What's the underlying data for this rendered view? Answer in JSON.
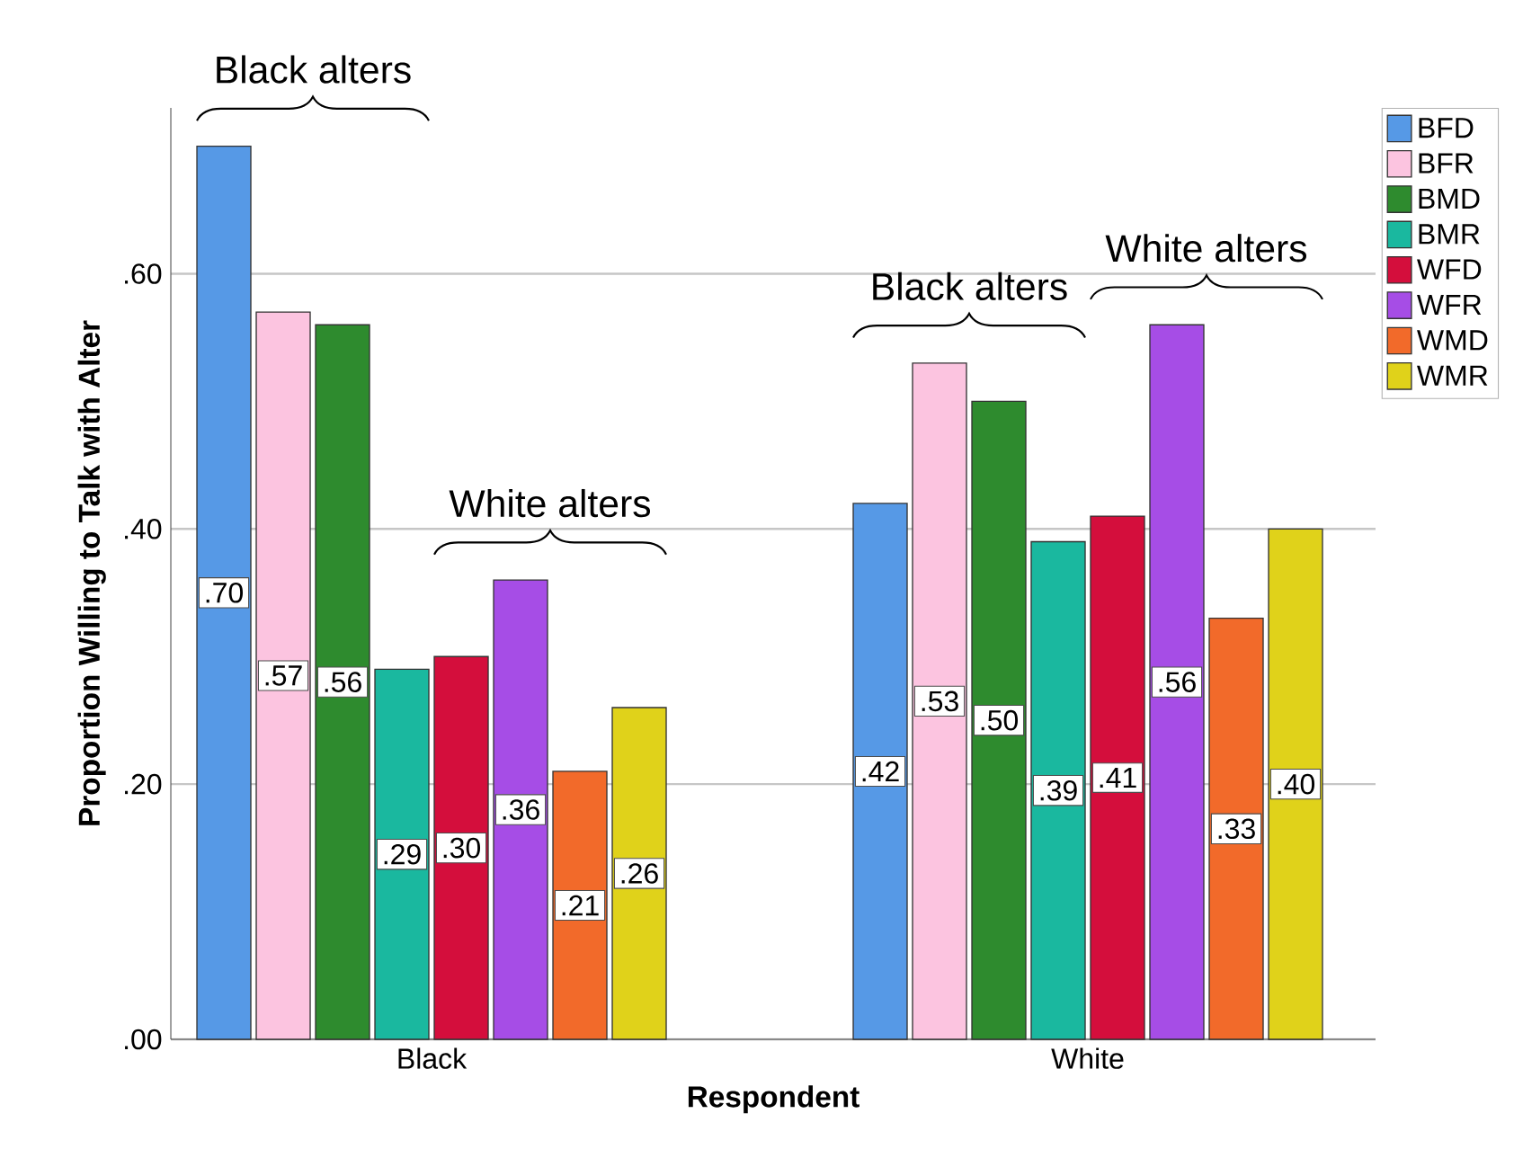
{
  "chart_data": {
    "type": "bar",
    "xlabel": "Respondent",
    "ylabel": "Proportion Willing to Talk with Alter",
    "categories": [
      "Black",
      "White"
    ],
    "ylim": [
      0,
      0.73
    ],
    "yticks": [
      {
        "value": 0,
        "label": ".00"
      },
      {
        "value": 0.2,
        "label": ".20"
      },
      {
        "value": 0.4,
        "label": ".40"
      },
      {
        "value": 0.6,
        "label": ".60"
      }
    ],
    "grid": "y",
    "legend": "top right",
    "series": [
      {
        "name": "BFD",
        "color": "#5699e6",
        "values": [
          0.7,
          0.42
        ],
        "value_labels": [
          ".70",
          ".42"
        ]
      },
      {
        "name": "BFR",
        "color": "#fcc4e0",
        "values": [
          0.57,
          0.53
        ],
        "value_labels": [
          ".57",
          ".53"
        ]
      },
      {
        "name": "BMD",
        "color": "#2e8b2e",
        "values": [
          0.56,
          0.5
        ],
        "value_labels": [
          ".56",
          ".50"
        ]
      },
      {
        "name": "BMR",
        "color": "#1ab89f",
        "values": [
          0.29,
          0.39
        ],
        "value_labels": [
          ".29",
          ".39"
        ]
      },
      {
        "name": "WFD",
        "color": "#d40e3c",
        "values": [
          0.3,
          0.41
        ],
        "value_labels": [
          ".30",
          ".41"
        ]
      },
      {
        "name": "WFR",
        "color": "#a64de6",
        "values": [
          0.36,
          0.56
        ],
        "value_labels": [
          ".36",
          ".56"
        ]
      },
      {
        "name": "WMD",
        "color": "#f26a2a",
        "values": [
          0.21,
          0.33
        ],
        "value_labels": [
          ".21",
          ".33"
        ]
      },
      {
        "name": "WMR",
        "color": "#e0d21a",
        "values": [
          0.26,
          0.4
        ],
        "value_labels": [
          ".26",
          ".40"
        ]
      }
    ],
    "annotations": [
      "Black alters",
      "White alters",
      "Black alters",
      "White alters"
    ]
  }
}
